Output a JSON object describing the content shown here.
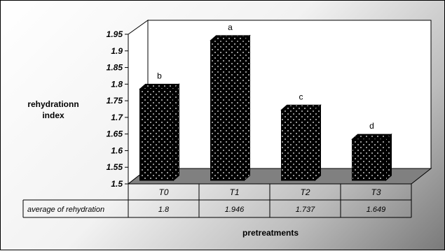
{
  "chart_data": {
    "type": "bar",
    "style": "3d-column",
    "categories": [
      "T0",
      "T1",
      "T2",
      "T3"
    ],
    "values": [
      1.8,
      1.946,
      1.737,
      1.649
    ],
    "data_labels": [
      "b",
      "a",
      "c",
      "d"
    ],
    "ylabel_lines": [
      "rehydrationn",
      "index"
    ],
    "xlabel": "pretreatments",
    "ylim": [
      1.5,
      1.95
    ],
    "yticks": [
      "1.5",
      "1.55",
      "1.6",
      "1.65",
      "1.7",
      "1.75",
      "1.8",
      "1.85",
      "1.9",
      "1.95"
    ],
    "data_table": {
      "row_label": "average of rehydration",
      "values": [
        "1.8",
        "1.946",
        "1.737",
        "1.649"
      ]
    },
    "grid": false,
    "legend": "none",
    "colors": {
      "bar": "#000000",
      "bar_dots": "#ffffff",
      "floor": "#808080",
      "wall": "#ffffff"
    }
  }
}
